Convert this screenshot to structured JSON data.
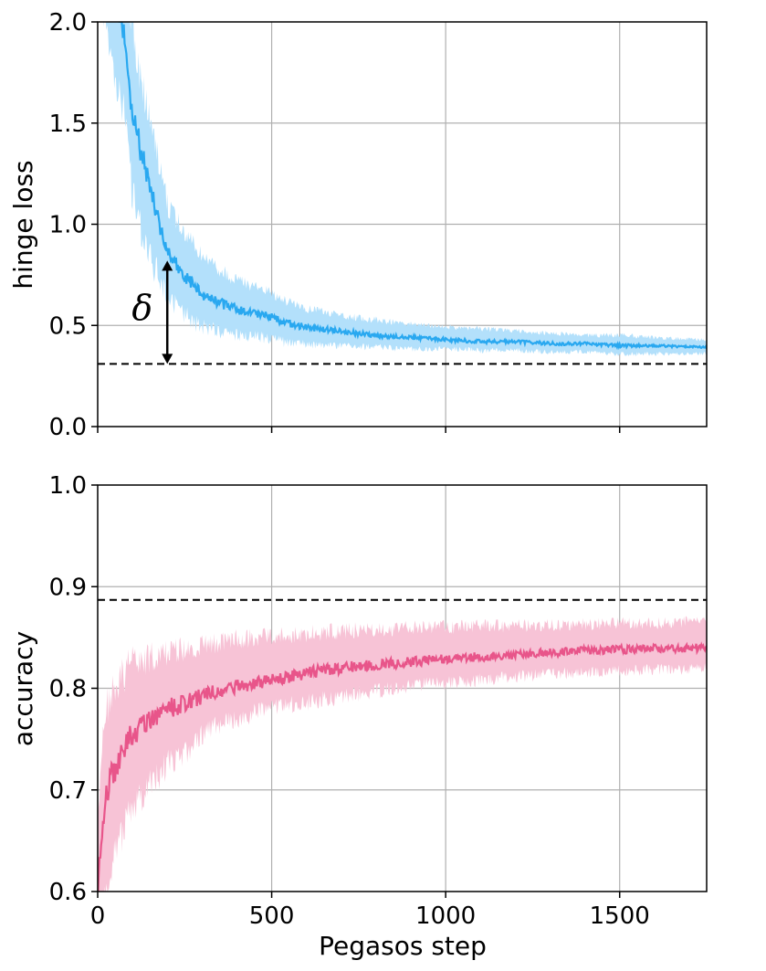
{
  "chart_data": [
    {
      "type": "line",
      "xlabel": "",
      "ylabel": "hinge loss",
      "xlim": [
        0,
        1750
      ],
      "ylim": [
        0.0,
        2.0
      ],
      "xticks": [
        0,
        500,
        1000,
        1500
      ],
      "yticks": [
        0.0,
        0.5,
        1.0,
        1.5,
        2.0
      ],
      "ytick_labels": [
        "0.0",
        "0.5",
        "1.0",
        "1.5",
        "2.0"
      ],
      "grid": true,
      "colors": {
        "line": "#29a8f0",
        "band": "#b3e0fb",
        "reference": "#000000"
      },
      "series": [
        {
          "x": [
            0,
            50,
            75,
            100,
            125,
            150,
            175,
            200,
            250,
            300,
            350,
            400,
            450,
            500,
            550,
            600,
            700,
            800,
            900,
            1000,
            1100,
            1200,
            1300,
            1400,
            1500,
            1600,
            1750
          ],
          "y": [
            2.6,
            2.15,
            1.95,
            1.55,
            1.35,
            1.18,
            1.02,
            0.86,
            0.74,
            0.66,
            0.61,
            0.58,
            0.56,
            0.54,
            0.51,
            0.49,
            0.47,
            0.45,
            0.44,
            0.43,
            0.42,
            0.42,
            0.41,
            0.41,
            0.4,
            0.4,
            0.39
          ],
          "y_lower": [
            2.3,
            1.85,
            1.65,
            1.25,
            1.08,
            0.93,
            0.82,
            0.7,
            0.6,
            0.54,
            0.51,
            0.49,
            0.48,
            0.46,
            0.44,
            0.43,
            0.42,
            0.41,
            0.4,
            0.4,
            0.39,
            0.39,
            0.38,
            0.38,
            0.37,
            0.37,
            0.37
          ],
          "y_upper": [
            2.9,
            2.45,
            2.25,
            1.85,
            1.62,
            1.43,
            1.25,
            1.04,
            0.9,
            0.8,
            0.73,
            0.69,
            0.66,
            0.63,
            0.59,
            0.56,
            0.53,
            0.51,
            0.49,
            0.48,
            0.47,
            0.46,
            0.45,
            0.44,
            0.44,
            0.43,
            0.42
          ]
        }
      ],
      "reference_line": {
        "y": 0.31,
        "style": "dashed"
      },
      "annotation": {
        "text": "δ",
        "x": 200,
        "y_from": 0.31,
        "y_to": 0.82
      }
    },
    {
      "type": "line",
      "xlabel": "Pegasos step",
      "ylabel": "accuracy",
      "xlim": [
        0,
        1750
      ],
      "ylim": [
        0.6,
        1.0
      ],
      "xticks": [
        0,
        500,
        1000,
        1500
      ],
      "xtick_labels": [
        "0",
        "500",
        "1000",
        "1500"
      ],
      "yticks": [
        0.6,
        0.7,
        0.8,
        0.9,
        1.0
      ],
      "ytick_labels": [
        "0.6",
        "0.7",
        "0.8",
        "0.9",
        "1.0"
      ],
      "grid": true,
      "colors": {
        "line": "#e8558a",
        "band": "#f7c3d6",
        "reference": "#000000"
      },
      "series": [
        {
          "x": [
            0,
            10,
            25,
            50,
            75,
            100,
            150,
            200,
            250,
            300,
            350,
            400,
            450,
            500,
            600,
            700,
            800,
            900,
            1000,
            1100,
            1200,
            1300,
            1400,
            1500,
            1600,
            1750
          ],
          "y": [
            0.6,
            0.66,
            0.7,
            0.72,
            0.74,
            0.755,
            0.77,
            0.78,
            0.785,
            0.792,
            0.798,
            0.802,
            0.805,
            0.808,
            0.815,
            0.82,
            0.823,
            0.826,
            0.829,
            0.831,
            0.833,
            0.835,
            0.837,
            0.838,
            0.839,
            0.84
          ],
          "y_lower": [
            0.55,
            0.6,
            0.63,
            0.66,
            0.68,
            0.7,
            0.72,
            0.74,
            0.75,
            0.765,
            0.775,
            0.78,
            0.785,
            0.79,
            0.795,
            0.8,
            0.805,
            0.81,
            0.812,
            0.815,
            0.818,
            0.82,
            0.822,
            0.823,
            0.824,
            0.825
          ],
          "y_upper": [
            0.65,
            0.72,
            0.76,
            0.78,
            0.795,
            0.805,
            0.815,
            0.822,
            0.826,
            0.83,
            0.835,
            0.838,
            0.84,
            0.842,
            0.845,
            0.848,
            0.85,
            0.852,
            0.853,
            0.854,
            0.855,
            0.856,
            0.857,
            0.858,
            0.858,
            0.86
          ]
        }
      ],
      "reference_line": {
        "y": 0.887,
        "style": "dashed"
      }
    }
  ]
}
